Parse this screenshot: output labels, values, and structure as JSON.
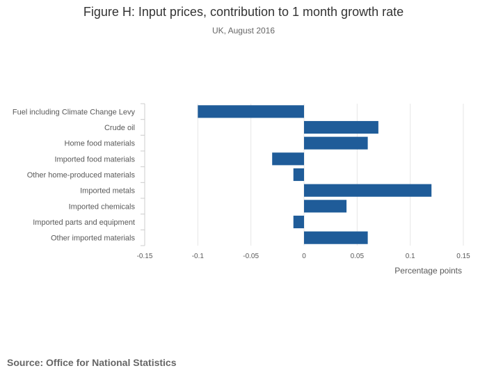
{
  "header": {
    "title": "Figure H: Input prices, contribution to 1 month growth rate",
    "subtitle": "UK, August 2016"
  },
  "footer": {
    "source": "Source: Office for National Statistics"
  },
  "colors": {
    "bar": "#1f5c99",
    "grid": "#e6e6e6",
    "axis": "#cccccc",
    "text": "#595959"
  },
  "chart_data": {
    "type": "bar",
    "orientation": "horizontal",
    "title": "Figure H: Input prices, contribution to 1 month growth rate",
    "subtitle": "UK, August 2016",
    "xlabel": "Percentage points",
    "ylabel": "",
    "categories": [
      "Fuel including Climate Change Levy",
      "Crude oil",
      "Home food materials",
      "Imported food materials",
      "Other home-produced materials",
      "Imported metals",
      "Imported chemicals",
      "Imported parts and equipment",
      "Other imported materials"
    ],
    "values": [
      -0.1,
      0.07,
      0.06,
      -0.03,
      -0.01,
      0.12,
      0.04,
      -0.01,
      0.06
    ],
    "xlim": [
      -0.15,
      0.15
    ],
    "xticks": [
      -0.15,
      -0.1,
      -0.05,
      0,
      0.05,
      0.1,
      0.15
    ],
    "xtick_labels": [
      "-0.15",
      "-0.1",
      "-0.05",
      "0",
      "0.05",
      "0.1",
      "0.15"
    ],
    "grid": true,
    "legend": "none"
  }
}
